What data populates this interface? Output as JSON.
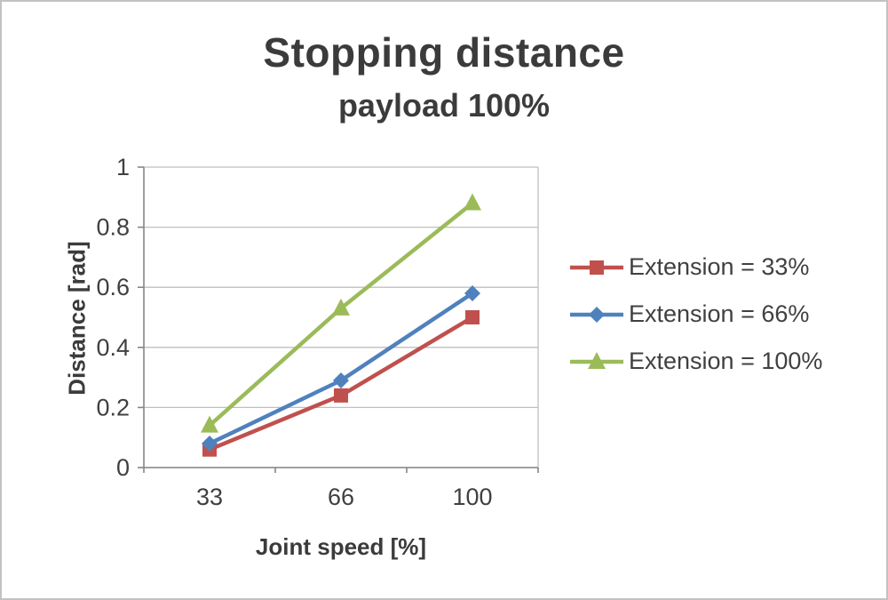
{
  "chart_data": {
    "type": "line",
    "title": "Stopping distance",
    "subtitle": "payload 100%",
    "categories": [
      "33",
      "66",
      "100"
    ],
    "series": [
      {
        "name": "Extension = 33%",
        "color": "#c0504d",
        "marker": "square",
        "values": [
          0.06,
          0.24,
          0.5
        ]
      },
      {
        "name": "Extension = 66%",
        "color": "#4f81bd",
        "marker": "diamond",
        "values": [
          0.08,
          0.29,
          0.58
        ]
      },
      {
        "name": "Extension = 100%",
        "color": "#9bbb59",
        "marker": "triangle",
        "values": [
          0.14,
          0.53,
          0.88
        ]
      }
    ],
    "xlabel": "Joint speed [%]",
    "ylabel": "Distance [rad]",
    "ylim": [
      0,
      1
    ],
    "yticks": [
      "0",
      "0.2",
      "0.4",
      "0.6",
      "0.8",
      "1"
    ],
    "grid": true,
    "legend_position": "right",
    "colors": {
      "gridline": "#bfbfbf",
      "axis": "#868686",
      "text": "#404040"
    }
  }
}
